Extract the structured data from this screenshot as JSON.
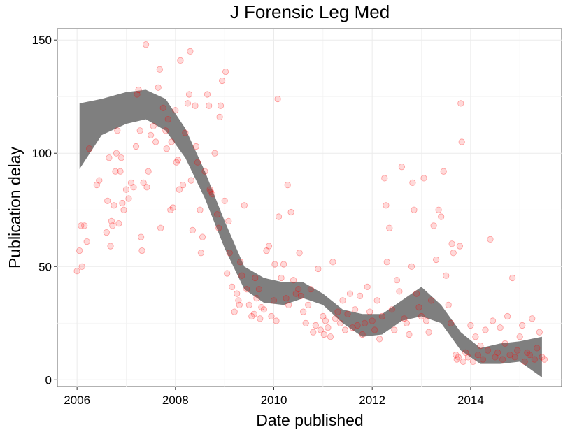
{
  "chart_data": {
    "type": "scatter",
    "title": "J Forensic Leg Med",
    "xlabel": "Date published",
    "ylabel": "Publication delay",
    "xlim": [
      2005.6,
      2015.85
    ],
    "ylim": [
      -3,
      155
    ],
    "xticks": [
      2006,
      2008,
      2010,
      2012,
      2014
    ],
    "yticks": [
      0,
      50,
      100,
      150
    ],
    "grid": true,
    "legend": "none",
    "point_color": "#ff0000",
    "band_color": "#7f7f7f",
    "series": [
      {
        "type": "scatter",
        "points": [
          [
            2006.0,
            48
          ],
          [
            2006.05,
            57
          ],
          [
            2006.08,
            68
          ],
          [
            2006.1,
            50
          ],
          [
            2006.15,
            68
          ],
          [
            2006.2,
            61
          ],
          [
            2006.25,
            102
          ],
          [
            2006.4,
            86
          ],
          [
            2006.45,
            88
          ],
          [
            2006.6,
            65
          ],
          [
            2006.62,
            79
          ],
          [
            2006.65,
            98
          ],
          [
            2006.68,
            59
          ],
          [
            2006.7,
            70
          ],
          [
            2006.72,
            68
          ],
          [
            2006.75,
            77
          ],
          [
            2006.78,
            92
          ],
          [
            2006.8,
            100
          ],
          [
            2006.82,
            110
          ],
          [
            2006.85,
            69
          ],
          [
            2006.88,
            92
          ],
          [
            2006.9,
            98
          ],
          [
            2006.92,
            78
          ],
          [
            2006.95,
            75
          ],
          [
            2007.0,
            84
          ],
          [
            2007.05,
            80
          ],
          [
            2007.1,
            87
          ],
          [
            2007.15,
            85
          ],
          [
            2007.2,
            103
          ],
          [
            2007.22,
            126
          ],
          [
            2007.25,
            128
          ],
          [
            2007.28,
            110
          ],
          [
            2007.3,
            63
          ],
          [
            2007.32,
            57
          ],
          [
            2007.35,
            87
          ],
          [
            2007.4,
            148
          ],
          [
            2007.42,
            85
          ],
          [
            2007.45,
            92
          ],
          [
            2007.5,
            108
          ],
          [
            2007.55,
            112
          ],
          [
            2007.6,
            105
          ],
          [
            2007.65,
            129
          ],
          [
            2007.68,
            137
          ],
          [
            2007.7,
            67
          ],
          [
            2007.75,
            120
          ],
          [
            2007.8,
            110
          ],
          [
            2007.82,
            102
          ],
          [
            2007.85,
            115
          ],
          [
            2007.9,
            75
          ],
          [
            2007.92,
            105
          ],
          [
            2007.95,
            76
          ],
          [
            2008.0,
            119
          ],
          [
            2008.02,
            96
          ],
          [
            2008.05,
            97
          ],
          [
            2008.08,
            84
          ],
          [
            2008.1,
            141
          ],
          [
            2008.15,
            86
          ],
          [
            2008.2,
            109
          ],
          [
            2008.25,
            122
          ],
          [
            2008.28,
            126
          ],
          [
            2008.3,
            145
          ],
          [
            2008.32,
            88
          ],
          [
            2008.35,
            66
          ],
          [
            2008.4,
            121
          ],
          [
            2008.42,
            103
          ],
          [
            2008.45,
            96
          ],
          [
            2008.5,
            75
          ],
          [
            2008.52,
            56
          ],
          [
            2008.55,
            63
          ],
          [
            2008.6,
            92
          ],
          [
            2008.65,
            126
          ],
          [
            2008.68,
            121
          ],
          [
            2008.7,
            84
          ],
          [
            2008.72,
            83
          ],
          [
            2008.75,
            82
          ],
          [
            2008.8,
            100
          ],
          [
            2008.85,
            73
          ],
          [
            2008.88,
            67
          ],
          [
            2008.9,
            116
          ],
          [
            2008.92,
            121
          ],
          [
            2008.95,
            132
          ],
          [
            2009.0,
            79
          ],
          [
            2009.02,
            136
          ],
          [
            2009.05,
            47
          ],
          [
            2009.08,
            70
          ],
          [
            2009.1,
            56
          ],
          [
            2009.15,
            41
          ],
          [
            2009.2,
            30
          ],
          [
            2009.25,
            38
          ],
          [
            2009.28,
            35
          ],
          [
            2009.3,
            33
          ],
          [
            2009.32,
            52
          ],
          [
            2009.35,
            46
          ],
          [
            2009.4,
            77
          ],
          [
            2009.45,
            40
          ],
          [
            2009.5,
            33
          ],
          [
            2009.55,
            28
          ],
          [
            2009.6,
            29
          ],
          [
            2009.62,
            45
          ],
          [
            2009.65,
            36
          ],
          [
            2009.7,
            40
          ],
          [
            2009.72,
            27
          ],
          [
            2009.75,
            32
          ],
          [
            2009.8,
            31
          ],
          [
            2009.85,
            57
          ],
          [
            2009.9,
            59
          ],
          [
            2009.95,
            28
          ],
          [
            2010.0,
            35
          ],
          [
            2010.02,
            51
          ],
          [
            2010.05,
            26
          ],
          [
            2010.08,
            124
          ],
          [
            2010.1,
            72
          ],
          [
            2010.15,
            45
          ],
          [
            2010.2,
            51
          ],
          [
            2010.25,
            36
          ],
          [
            2010.28,
            86
          ],
          [
            2010.3,
            33
          ],
          [
            2010.35,
            74
          ],
          [
            2010.4,
            44
          ],
          [
            2010.45,
            38
          ],
          [
            2010.5,
            40
          ],
          [
            2010.52,
            56
          ],
          [
            2010.55,
            37
          ],
          [
            2010.6,
            30
          ],
          [
            2010.65,
            25
          ],
          [
            2010.7,
            33
          ],
          [
            2010.75,
            40
          ],
          [
            2010.8,
            21
          ],
          [
            2010.85,
            24
          ],
          [
            2010.9,
            49
          ],
          [
            2010.95,
            22
          ],
          [
            2011.0,
            28
          ],
          [
            2011.02,
            20
          ],
          [
            2011.05,
            26
          ],
          [
            2011.1,
            23
          ],
          [
            2011.15,
            19
          ],
          [
            2011.2,
            52
          ],
          [
            2011.25,
            27
          ],
          [
            2011.3,
            30
          ],
          [
            2011.35,
            25
          ],
          [
            2011.4,
            35
          ],
          [
            2011.45,
            22
          ],
          [
            2011.5,
            29
          ],
          [
            2011.55,
            38
          ],
          [
            2011.6,
            23
          ],
          [
            2011.65,
            31
          ],
          [
            2011.7,
            24
          ],
          [
            2011.75,
            37
          ],
          [
            2011.8,
            20
          ],
          [
            2011.85,
            25
          ],
          [
            2011.9,
            41
          ],
          [
            2011.95,
            30
          ],
          [
            2012.0,
            26
          ],
          [
            2012.05,
            22
          ],
          [
            2012.1,
            35
          ],
          [
            2012.15,
            18
          ],
          [
            2012.2,
            28
          ],
          [
            2012.25,
            89
          ],
          [
            2012.28,
            77
          ],
          [
            2012.3,
            52
          ],
          [
            2012.35,
            67
          ],
          [
            2012.4,
            31
          ],
          [
            2012.45,
            22
          ],
          [
            2012.5,
            44
          ],
          [
            2012.55,
            39
          ],
          [
            2012.6,
            94
          ],
          [
            2012.65,
            27
          ],
          [
            2012.7,
            25
          ],
          [
            2012.75,
            20
          ],
          [
            2012.8,
            50
          ],
          [
            2012.82,
            87
          ],
          [
            2012.85,
            75
          ],
          [
            2012.9,
            38
          ],
          [
            2012.95,
            32
          ],
          [
            2013.0,
            28
          ],
          [
            2013.05,
            89
          ],
          [
            2013.1,
            26
          ],
          [
            2013.15,
            21
          ],
          [
            2013.2,
            35
          ],
          [
            2013.25,
            68
          ],
          [
            2013.3,
            53
          ],
          [
            2013.35,
            75
          ],
          [
            2013.4,
            72
          ],
          [
            2013.45,
            92
          ],
          [
            2013.5,
            46
          ],
          [
            2013.55,
            33
          ],
          [
            2013.6,
            25
          ],
          [
            2013.62,
            60
          ],
          [
            2013.65,
            56
          ],
          [
            2013.7,
            11
          ],
          [
            2013.72,
            9
          ],
          [
            2013.75,
            10
          ],
          [
            2013.78,
            59
          ],
          [
            2013.8,
            122
          ],
          [
            2013.82,
            105
          ],
          [
            2013.85,
            8
          ],
          [
            2013.9,
            12
          ],
          [
            2013.95,
            10
          ],
          [
            2014.0,
            24
          ],
          [
            2014.05,
            8
          ],
          [
            2014.1,
            19
          ],
          [
            2014.15,
            11
          ],
          [
            2014.2,
            15
          ],
          [
            2014.25,
            9
          ],
          [
            2014.3,
            22
          ],
          [
            2014.35,
            13
          ],
          [
            2014.4,
            62
          ],
          [
            2014.45,
            26
          ],
          [
            2014.5,
            10
          ],
          [
            2014.55,
            12
          ],
          [
            2014.6,
            23
          ],
          [
            2014.65,
            9
          ],
          [
            2014.7,
            16
          ],
          [
            2014.75,
            28
          ],
          [
            2014.8,
            11
          ],
          [
            2014.85,
            45
          ],
          [
            2014.9,
            10
          ],
          [
            2014.95,
            13
          ],
          [
            2015.0,
            19
          ],
          [
            2015.05,
            24
          ],
          [
            2015.1,
            8
          ],
          [
            2015.15,
            12
          ],
          [
            2015.2,
            11
          ],
          [
            2015.25,
            27
          ],
          [
            2015.3,
            9
          ],
          [
            2015.35,
            14
          ],
          [
            2015.4,
            21
          ],
          [
            2015.45,
            10
          ],
          [
            2015.5,
            9
          ]
        ]
      },
      {
        "type": "band",
        "x": [
          2006.05,
          2006.5,
          2007.0,
          2007.4,
          2007.8,
          2008.2,
          2008.6,
          2009.0,
          2009.4,
          2009.8,
          2010.2,
          2010.6,
          2011.0,
          2011.4,
          2011.8,
          2012.2,
          2012.6,
          2013.0,
          2013.4,
          2013.8,
          2014.2,
          2014.6,
          2015.0,
          2015.45
        ],
        "lower": [
          93,
          108,
          113,
          115,
          110,
          98,
          80,
          58,
          40,
          34,
          33,
          36,
          33,
          25,
          19,
          20,
          26,
          28,
          25,
          13,
          7,
          7,
          8,
          1
        ],
        "upper": [
          122,
          124,
          127,
          128,
          124,
          111,
          92,
          70,
          50,
          45,
          43,
          43,
          38,
          31,
          29,
          29,
          35,
          41,
          33,
          21,
          14,
          16,
          17,
          19
        ]
      }
    ]
  }
}
